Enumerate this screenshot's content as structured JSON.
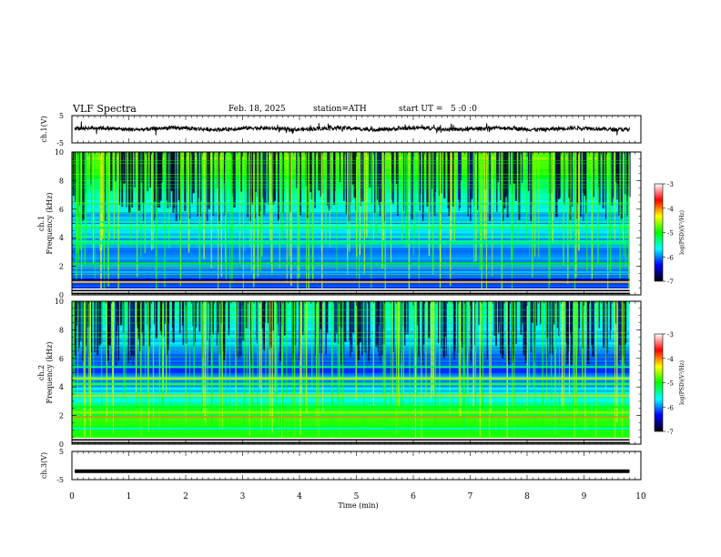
{
  "header": {
    "title": "VLF Spectra",
    "date": "Feb. 18, 2025",
    "station": "station=ATH",
    "start": "start UT =   5 :0 :0"
  },
  "chart_data": [
    {
      "type": "line",
      "name": "ch1-waveform",
      "ylabel": "ch.1(V)",
      "ylim": [
        -5,
        5
      ],
      "yticks": [
        "5",
        "-5"
      ],
      "xlim": [
        0,
        10
      ],
      "baseline_v": 0.2
    },
    {
      "type": "heatmap",
      "name": "ch1-spectrogram",
      "ylabel_top": "ch.1",
      "ylabel": "Frequency (kHz)",
      "ylim": [
        0,
        10
      ],
      "yticks": [
        0,
        2,
        4,
        6,
        8,
        10
      ],
      "xlim": [
        0,
        10
      ],
      "data_end_min": 9.8,
      "bands_khz": [
        {
          "f": 0.9,
          "level": -4.2
        },
        {
          "f": 1.05,
          "level": -6.7
        },
        {
          "f": 1.6,
          "level": -5.8
        },
        {
          "f": 2.2,
          "level": -5.0
        },
        {
          "f": 3.6,
          "level": -5.2
        },
        {
          "f": 3.75,
          "level": -5.4
        },
        {
          "f": 4.7,
          "level": -5.2
        },
        {
          "f": 5.1,
          "level": -5.4
        }
      ]
    },
    {
      "type": "heatmap",
      "name": "ch2-spectrogram",
      "ylabel_top": "ch.2",
      "ylabel": "Frequency (kHz)",
      "ylim": [
        0,
        10
      ],
      "yticks": [
        0,
        2,
        4,
        6,
        8,
        10
      ],
      "xlim": [
        0,
        10
      ],
      "data_end_min": 9.8,
      "bands_khz": [
        {
          "f": 1.1,
          "level": -5.6
        },
        {
          "f": 1.9,
          "level": -4.0
        },
        {
          "f": 2.2,
          "level": -4.6
        },
        {
          "f": 2.6,
          "level": -5.0
        },
        {
          "f": 3.4,
          "level": -4.2
        },
        {
          "f": 4.2,
          "level": -4.8
        },
        {
          "f": 4.6,
          "level": -4.3
        },
        {
          "f": 5.4,
          "level": -5.3
        }
      ]
    },
    {
      "type": "line",
      "name": "ch3-waveform",
      "ylabel": "ch.3(V)",
      "ylim": [
        -5,
        5
      ],
      "yticks": [
        "5",
        "-5"
      ],
      "xlim": [
        0,
        10
      ],
      "baseline_v": -2.0
    }
  ],
  "xaxis": {
    "label": "Time (min)",
    "ticks": [
      "0",
      "1",
      "2",
      "3",
      "4",
      "5",
      "6",
      "7",
      "8",
      "9",
      "10"
    ]
  },
  "colorbars": [
    {
      "label": "log(PSD)(V²/Hz)",
      "ticks": [
        "-3",
        "-4",
        "-5",
        "-6",
        "-7"
      ],
      "range": [
        -7,
        -3
      ]
    },
    {
      "label": "log(PSD)(V²/Hz)",
      "ticks": [
        "-3",
        "-4",
        "-5",
        "-6",
        "-7"
      ],
      "range": [
        -7,
        -3
      ]
    }
  ],
  "colormap": [
    "#000000",
    "#0000ff",
    "#00ffff",
    "#00ff00",
    "#ffff00",
    "#ff0000",
    "#ffffff"
  ]
}
